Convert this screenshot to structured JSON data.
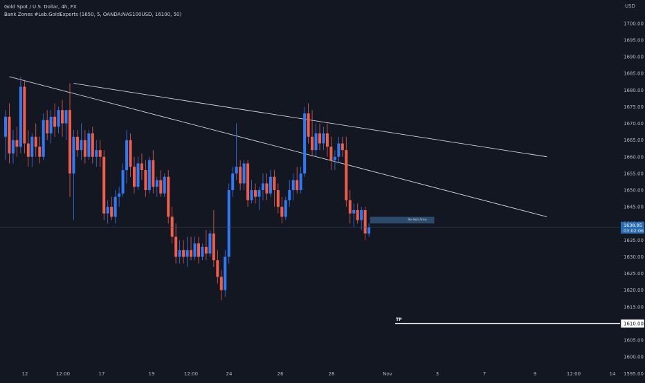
{
  "header": {
    "symbol_line": "Gold Spot / U.S. Dollar, 4h, FX",
    "indicator_line": "Bank Zones #Leb.GoldExperts (1650, 5, OANDA:NAS100USD, 16100, 50)"
  },
  "price_axis": {
    "currency": "USD",
    "ticks": [
      "1700.00",
      "1695.00",
      "1690.00",
      "1685.00",
      "1680.00",
      "1675.00",
      "1670.00",
      "1665.00",
      "1660.00",
      "1655.00",
      "1650.00",
      "1645.00",
      "1640.00",
      "1635.00",
      "1630.00",
      "1625.00",
      "1620.00",
      "1615.00",
      "1605.00",
      "1600.00",
      "1595.00"
    ],
    "current_price": "1638.85",
    "countdown": "03:02:06",
    "tp_price": "1610.00"
  },
  "time_axis": {
    "ticks": [
      "12",
      "12:00",
      "17",
      "19",
      "12:00",
      "24",
      "26",
      "28",
      "Nov",
      "3",
      "7",
      "9",
      "12:00",
      "14"
    ]
  },
  "annotations": {
    "resell_label": "Re-Sell Area",
    "tp_label": "TP"
  },
  "colors": {
    "background": "#131722",
    "up": "#3179f5",
    "down": "#f05d4a",
    "axis_text": "#b2b5be",
    "current_price": "#2a6cb0",
    "trendline": "#d1d4dc"
  },
  "chart_data": {
    "type": "candlestick",
    "timeframe": "4h",
    "ylim": [
      1593,
      1707
    ],
    "current_price": 1638.85,
    "resell_zone": [
      1640,
      1642
    ],
    "take_profit": 1610,
    "trendlines": [
      {
        "from": [
          1,
          1684
        ],
        "to": [
          143,
          1642
        ]
      },
      {
        "from": [
          18,
          1682
        ],
        "to": [
          143,
          1660
        ]
      }
    ],
    "candles": [
      {
        "o": 1666,
        "h": 1674,
        "l": 1659,
        "c": 1672
      },
      {
        "o": 1672,
        "h": 1676,
        "l": 1658,
        "c": 1661
      },
      {
        "o": 1661,
        "h": 1668,
        "l": 1658,
        "c": 1665
      },
      {
        "o": 1665,
        "h": 1669,
        "l": 1660,
        "c": 1663
      },
      {
        "o": 1663,
        "h": 1684,
        "l": 1661,
        "c": 1681
      },
      {
        "o": 1681,
        "h": 1683,
        "l": 1661,
        "c": 1664
      },
      {
        "o": 1664,
        "h": 1668,
        "l": 1657,
        "c": 1660
      },
      {
        "o": 1660,
        "h": 1667,
        "l": 1657,
        "c": 1666
      },
      {
        "o": 1666,
        "h": 1670,
        "l": 1660,
        "c": 1663
      },
      {
        "o": 1663,
        "h": 1666,
        "l": 1658,
        "c": 1660
      },
      {
        "o": 1660,
        "h": 1673,
        "l": 1659,
        "c": 1671
      },
      {
        "o": 1671,
        "h": 1674,
        "l": 1665,
        "c": 1667
      },
      {
        "o": 1667,
        "h": 1674,
        "l": 1664,
        "c": 1672
      },
      {
        "o": 1672,
        "h": 1676,
        "l": 1666,
        "c": 1669
      },
      {
        "o": 1669,
        "h": 1675,
        "l": 1667,
        "c": 1674
      },
      {
        "o": 1674,
        "h": 1677,
        "l": 1666,
        "c": 1670
      },
      {
        "o": 1670,
        "h": 1674,
        "l": 1665,
        "c": 1674
      },
      {
        "o": 1674,
        "h": 1682,
        "l": 1648,
        "c": 1655
      },
      {
        "o": 1655,
        "h": 1668,
        "l": 1641,
        "c": 1666
      },
      {
        "o": 1666,
        "h": 1668,
        "l": 1660,
        "c": 1662
      },
      {
        "o": 1662,
        "h": 1670,
        "l": 1659,
        "c": 1665
      },
      {
        "o": 1665,
        "h": 1668,
        "l": 1658,
        "c": 1660
      },
      {
        "o": 1660,
        "h": 1668,
        "l": 1659,
        "c": 1667
      },
      {
        "o": 1667,
        "h": 1669,
        "l": 1658,
        "c": 1660
      },
      {
        "o": 1660,
        "h": 1665,
        "l": 1657,
        "c": 1662
      },
      {
        "o": 1662,
        "h": 1665,
        "l": 1657,
        "c": 1660
      },
      {
        "o": 1660,
        "h": 1662,
        "l": 1641,
        "c": 1643
      },
      {
        "o": 1643,
        "h": 1647,
        "l": 1640,
        "c": 1645
      },
      {
        "o": 1645,
        "h": 1648,
        "l": 1641,
        "c": 1642
      },
      {
        "o": 1642,
        "h": 1650,
        "l": 1640,
        "c": 1648
      },
      {
        "o": 1648,
        "h": 1651,
        "l": 1645,
        "c": 1649
      },
      {
        "o": 1649,
        "h": 1658,
        "l": 1648,
        "c": 1656
      },
      {
        "o": 1656,
        "h": 1668,
        "l": 1652,
        "c": 1665
      },
      {
        "o": 1665,
        "h": 1667,
        "l": 1654,
        "c": 1657
      },
      {
        "o": 1657,
        "h": 1660,
        "l": 1649,
        "c": 1651
      },
      {
        "o": 1651,
        "h": 1660,
        "l": 1650,
        "c": 1658
      },
      {
        "o": 1658,
        "h": 1661,
        "l": 1653,
        "c": 1656
      },
      {
        "o": 1656,
        "h": 1659,
        "l": 1648,
        "c": 1650
      },
      {
        "o": 1650,
        "h": 1660,
        "l": 1649,
        "c": 1659
      },
      {
        "o": 1659,
        "h": 1662,
        "l": 1649,
        "c": 1651
      },
      {
        "o": 1651,
        "h": 1654,
        "l": 1648,
        "c": 1653
      },
      {
        "o": 1653,
        "h": 1656,
        "l": 1648,
        "c": 1649
      },
      {
        "o": 1649,
        "h": 1655,
        "l": 1648,
        "c": 1654
      },
      {
        "o": 1654,
        "h": 1656,
        "l": 1640,
        "c": 1642
      },
      {
        "o": 1642,
        "h": 1645,
        "l": 1634,
        "c": 1636
      },
      {
        "o": 1636,
        "h": 1640,
        "l": 1628,
        "c": 1630
      },
      {
        "o": 1630,
        "h": 1635,
        "l": 1628,
        "c": 1632
      },
      {
        "o": 1632,
        "h": 1635,
        "l": 1628,
        "c": 1630
      },
      {
        "o": 1630,
        "h": 1636,
        "l": 1627,
        "c": 1632
      },
      {
        "o": 1632,
        "h": 1636,
        "l": 1629,
        "c": 1630
      },
      {
        "o": 1630,
        "h": 1636,
        "l": 1629,
        "c": 1634
      },
      {
        "o": 1634,
        "h": 1636,
        "l": 1628,
        "c": 1630
      },
      {
        "o": 1630,
        "h": 1634,
        "l": 1629,
        "c": 1633
      },
      {
        "o": 1633,
        "h": 1638,
        "l": 1629,
        "c": 1631
      },
      {
        "o": 1631,
        "h": 1638,
        "l": 1630,
        "c": 1637
      },
      {
        "o": 1637,
        "h": 1644,
        "l": 1627,
        "c": 1629
      },
      {
        "o": 1629,
        "h": 1632,
        "l": 1622,
        "c": 1624
      },
      {
        "o": 1624,
        "h": 1626,
        "l": 1617,
        "c": 1620
      },
      {
        "o": 1620,
        "h": 1632,
        "l": 1618,
        "c": 1630
      },
      {
        "o": 1630,
        "h": 1652,
        "l": 1628,
        "c": 1650
      },
      {
        "o": 1650,
        "h": 1657,
        "l": 1648,
        "c": 1655
      },
      {
        "o": 1655,
        "h": 1670,
        "l": 1653,
        "c": 1657
      },
      {
        "o": 1657,
        "h": 1659,
        "l": 1650,
        "c": 1652
      },
      {
        "o": 1652,
        "h": 1659,
        "l": 1650,
        "c": 1658
      },
      {
        "o": 1658,
        "h": 1659,
        "l": 1645,
        "c": 1647
      },
      {
        "o": 1647,
        "h": 1653,
        "l": 1646,
        "c": 1650
      },
      {
        "o": 1650,
        "h": 1652,
        "l": 1646,
        "c": 1648
      },
      {
        "o": 1648,
        "h": 1651,
        "l": 1644,
        "c": 1650
      },
      {
        "o": 1650,
        "h": 1655,
        "l": 1647,
        "c": 1652
      },
      {
        "o": 1652,
        "h": 1655,
        "l": 1647,
        "c": 1649
      },
      {
        "o": 1649,
        "h": 1656,
        "l": 1648,
        "c": 1654
      },
      {
        "o": 1654,
        "h": 1656,
        "l": 1645,
        "c": 1650
      },
      {
        "o": 1650,
        "h": 1652,
        "l": 1643,
        "c": 1645
      },
      {
        "o": 1645,
        "h": 1648,
        "l": 1640,
        "c": 1642
      },
      {
        "o": 1642,
        "h": 1648,
        "l": 1641,
        "c": 1647
      },
      {
        "o": 1647,
        "h": 1653,
        "l": 1645,
        "c": 1650
      },
      {
        "o": 1650,
        "h": 1655,
        "l": 1647,
        "c": 1653
      },
      {
        "o": 1653,
        "h": 1657,
        "l": 1649,
        "c": 1650
      },
      {
        "o": 1650,
        "h": 1657,
        "l": 1649,
        "c": 1655
      },
      {
        "o": 1655,
        "h": 1675,
        "l": 1654,
        "c": 1673
      },
      {
        "o": 1673,
        "h": 1676,
        "l": 1664,
        "c": 1666
      },
      {
        "o": 1666,
        "h": 1674,
        "l": 1660,
        "c": 1662
      },
      {
        "o": 1662,
        "h": 1670,
        "l": 1660,
        "c": 1667
      },
      {
        "o": 1667,
        "h": 1670,
        "l": 1662,
        "c": 1664
      },
      {
        "o": 1664,
        "h": 1669,
        "l": 1662,
        "c": 1667
      },
      {
        "o": 1667,
        "h": 1670,
        "l": 1660,
        "c": 1663
      },
      {
        "o": 1663,
        "h": 1666,
        "l": 1656,
        "c": 1659
      },
      {
        "o": 1659,
        "h": 1662,
        "l": 1656,
        "c": 1660
      },
      {
        "o": 1660,
        "h": 1666,
        "l": 1658,
        "c": 1664
      },
      {
        "o": 1664,
        "h": 1666,
        "l": 1660,
        "c": 1662
      },
      {
        "o": 1662,
        "h": 1666,
        "l": 1645,
        "c": 1647
      },
      {
        "o": 1647,
        "h": 1650,
        "l": 1640,
        "c": 1643
      },
      {
        "o": 1643,
        "h": 1646,
        "l": 1639,
        "c": 1644
      },
      {
        "o": 1644,
        "h": 1646,
        "l": 1640,
        "c": 1641
      },
      {
        "o": 1641,
        "h": 1645,
        "l": 1638,
        "c": 1644
      },
      {
        "o": 1644,
        "h": 1645,
        "l": 1635,
        "c": 1637
      },
      {
        "o": 1637,
        "h": 1640,
        "l": 1636,
        "c": 1638.85
      }
    ]
  }
}
